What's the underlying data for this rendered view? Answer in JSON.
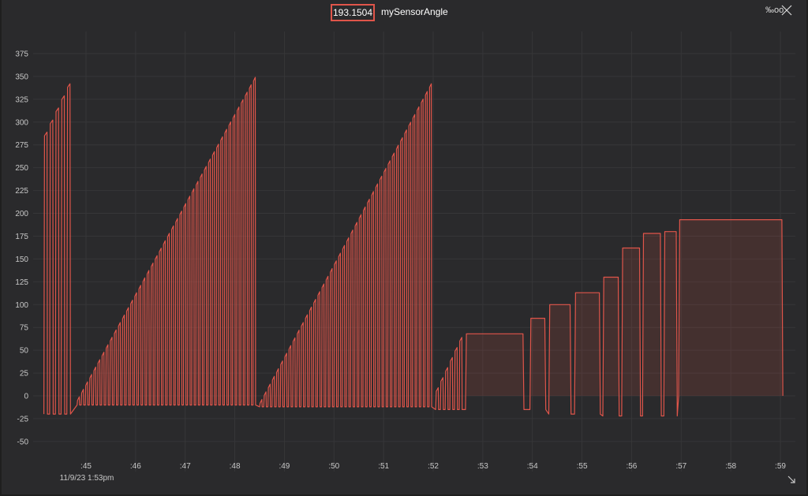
{
  "header": {
    "current_value": "193.1504",
    "series_name": "mySensorAngle",
    "permille_icon": "‰oo"
  },
  "colors": {
    "line": "#e0554a",
    "fill": "rgba(224, 85, 74, 0.14)",
    "grid": "#363638",
    "background": "#2a2a2c"
  },
  "chart_data": {
    "type": "line",
    "xlabel": "",
    "ylabel": "",
    "ylim": [
      -60,
      385
    ],
    "xlim": [
      44.1,
      59.1
    ],
    "date_label": "11/9/23 1:53pm",
    "x_ticks": [
      {
        "value": 45,
        "label": ":45"
      },
      {
        "value": 46,
        "label": ":46"
      },
      {
        "value": 47,
        "label": ":47"
      },
      {
        "value": 48,
        "label": ":48"
      },
      {
        "value": 49,
        "label": ":49"
      },
      {
        "value": 50,
        "label": ":50"
      },
      {
        "value": 51,
        "label": ":51"
      },
      {
        "value": 52,
        "label": ":52"
      },
      {
        "value": 53,
        "label": ":53"
      },
      {
        "value": 54,
        "label": ":54"
      },
      {
        "value": 55,
        "label": ":55"
      },
      {
        "value": 56,
        "label": ":56"
      },
      {
        "value": 57,
        "label": ":57"
      },
      {
        "value": 58,
        "label": ":58"
      },
      {
        "value": 59,
        "label": ":59"
      }
    ],
    "y_ticks": [
      {
        "value": 375,
        "label": "375"
      },
      {
        "value": 350,
        "label": "350"
      },
      {
        "value": 325,
        "label": "325"
      },
      {
        "value": 300,
        "label": "300"
      },
      {
        "value": 275,
        "label": "275"
      },
      {
        "value": 250,
        "label": "250"
      },
      {
        "value": 225,
        "label": "225"
      },
      {
        "value": 200,
        "label": "200"
      },
      {
        "value": 175,
        "label": "175"
      },
      {
        "value": 150,
        "label": "150"
      },
      {
        "value": 125,
        "label": "125"
      },
      {
        "value": 100,
        "label": "100"
      },
      {
        "value": 75,
        "label": "75"
      },
      {
        "value": 50,
        "label": "50"
      },
      {
        "value": 25,
        "label": "25"
      },
      {
        "value": 0,
        "label": "0"
      },
      {
        "value": -25,
        "label": "-25"
      },
      {
        "value": -50,
        "label": "-50"
      }
    ],
    "segments": [
      {
        "x0": 44.15,
        "x1": 44.73,
        "low": -20,
        "high0": 285,
        "high1": 338,
        "n": 5
      },
      {
        "x0": 44.82,
        "x1": 48.45,
        "low": -10,
        "high0": -5,
        "high1": 345,
        "n": 44
      },
      {
        "x0": 48.5,
        "x1": 52.0,
        "low": -12,
        "high0": -8,
        "high1": 338,
        "n": 42
      },
      {
        "x0": 52.05,
        "x1": 52.62,
        "low": -15,
        "high0": 5,
        "high1": 60,
        "n": 6
      }
    ],
    "plateaus": [
      {
        "x0": 52.65,
        "x1": 53.83,
        "low": -15,
        "value": 68
      },
      {
        "x0": 53.95,
        "x1": 54.27,
        "low": -15,
        "value": 85
      },
      {
        "x0": 54.33,
        "x1": 54.78,
        "low": -20,
        "value": 100
      },
      {
        "x0": 54.85,
        "x1": 55.37,
        "low": -20,
        "value": 113
      },
      {
        "x0": 55.42,
        "x1": 55.75,
        "low": -22,
        "value": 130
      },
      {
        "x0": 55.8,
        "x1": 56.18,
        "low": -22,
        "value": 162
      },
      {
        "x0": 56.22,
        "x1": 56.6,
        "low": -22,
        "value": 178
      },
      {
        "x0": 56.65,
        "x1": 56.92,
        "low": -22,
        "value": 180
      },
      {
        "x0": 56.95,
        "x1": 59.05,
        "low": 0,
        "value": 193
      }
    ]
  }
}
